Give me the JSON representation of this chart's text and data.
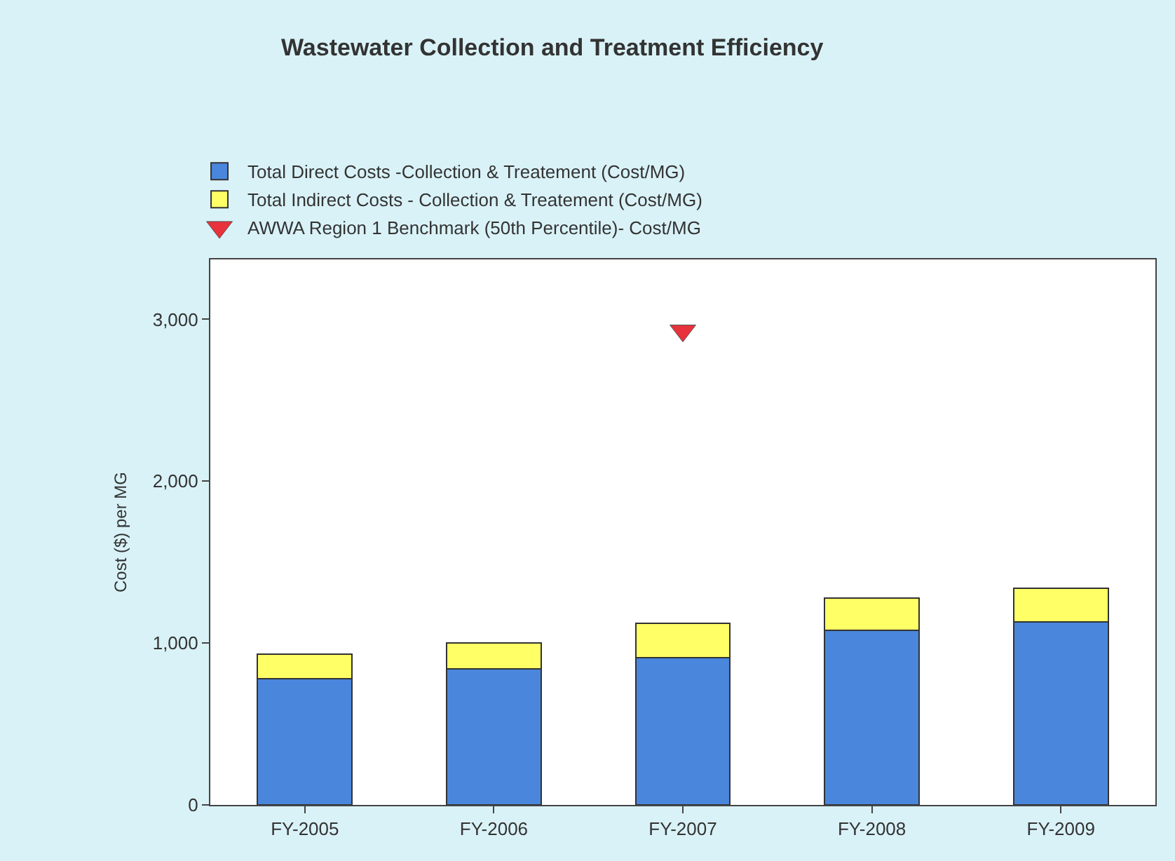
{
  "chart_data": {
    "type": "bar",
    "title": "Wastewater Collection and Treatment Efficiency",
    "ylabel": "Cost ($) per MG",
    "categories": [
      "FY-2005",
      "FY-2006",
      "FY-2007",
      "FY-2008",
      "FY-2009"
    ],
    "stacked": true,
    "series": [
      {
        "name": "Total Direct Costs -Collection & Treatement (Cost/MG)",
        "color": "#4a86dc",
        "values": [
          780,
          840,
          910,
          1080,
          1130
        ]
      },
      {
        "name": "Total Indirect Costs - Collection & Treatement (Cost/MG)",
        "color": "#ffff66",
        "values": [
          150,
          160,
          210,
          200,
          210
        ]
      },
      {
        "name": "AWWA Region 1 Benchmark (50th Percentile)- Cost/MG",
        "type": "scatter",
        "marker": "triangle",
        "color": "#e8323c",
        "values": [
          null,
          null,
          2930,
          null,
          null
        ]
      }
    ],
    "ylim": [
      0,
      3370
    ],
    "yticks": [
      {
        "value": 0,
        "label": "0"
      },
      {
        "value": 1000,
        "label": "1,000"
      },
      {
        "value": 2000,
        "label": "2,000"
      },
      {
        "value": 3000,
        "label": "3,000"
      }
    ],
    "legend": "top"
  }
}
